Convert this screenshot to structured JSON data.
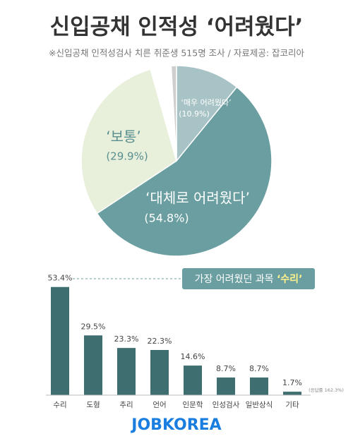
{
  "chart_data": [
    {
      "type": "pie",
      "title": "신입공채 인적성 ‘어려웠다’",
      "subtitle": "※신입공채 인적성검사 치른 취준생 515명 조사 / 자료제공: 잡코리아",
      "categories": [
        "‘매우 어려웠다’",
        "‘대체로 어려웠다’",
        "‘보통’",
        null,
        null
      ],
      "values": [
        10.9,
        54.8,
        29.9,
        3.5,
        0.9
      ],
      "value_labels": [
        "(10.9%)",
        "(54.8%)",
        "(29.9%)",
        null,
        null
      ],
      "colors": [
        "#a8c3c5",
        "#6a9ea0",
        "#e8f0dc",
        "#ffffff",
        "#cfcfcf"
      ]
    },
    {
      "type": "bar",
      "categories": [
        "수리",
        "도형",
        "추리",
        "언어",
        "인문학",
        "인성검사",
        "일반상식",
        "기타"
      ],
      "values": [
        53.4,
        29.5,
        23.3,
        22.3,
        14.6,
        8.7,
        8.7,
        1.7
      ],
      "value_labels": [
        "53.4%",
        "29.5%",
        "23.3%",
        "22.3%",
        "14.6%",
        "8.7%",
        "8.7%",
        "1.7%"
      ],
      "color": "#3f6e70",
      "annotation": {
        "text": "가장 어려웠던 과목 ",
        "highlight": "‘수리’"
      },
      "note": "(응답률 162.3%)",
      "footer": "JOBKOREA"
    }
  ]
}
